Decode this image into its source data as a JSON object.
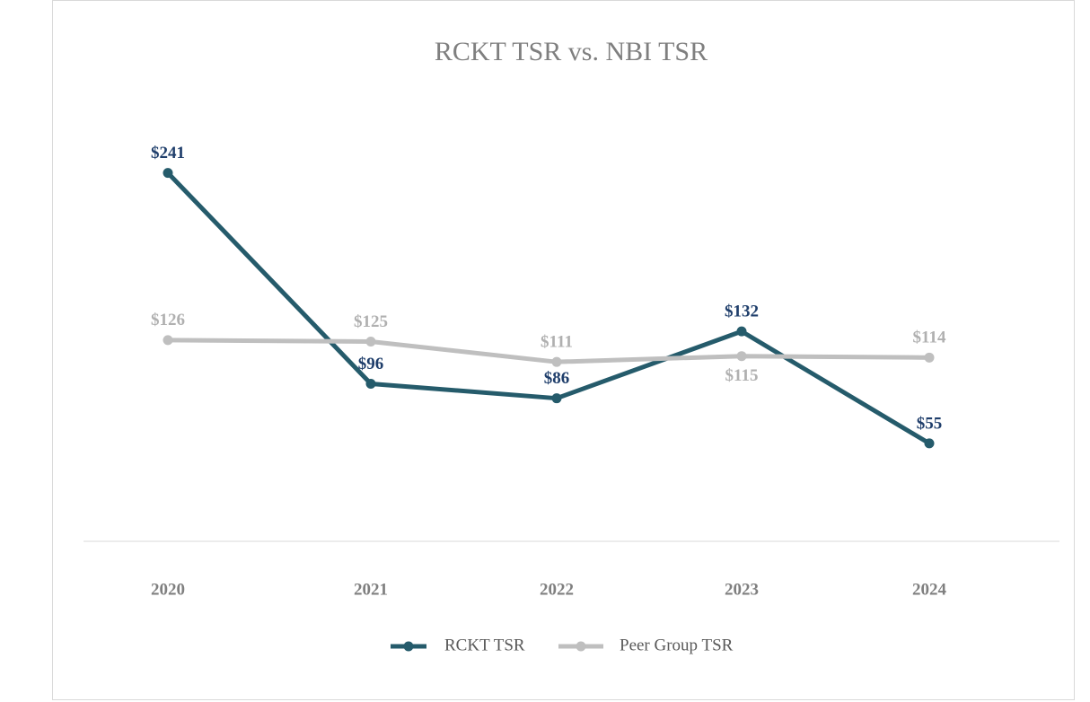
{
  "chart_data": {
    "type": "line",
    "title": "RCKT TSR vs. NBI TSR",
    "categories": [
      "2020",
      "2021",
      "2022",
      "2023",
      "2024"
    ],
    "series": [
      {
        "name": "RCKT TSR",
        "color": "#255b6b",
        "values": [
          241,
          96,
          86,
          132,
          55
        ],
        "value_labels": [
          "$241",
          "$96",
          "$86",
          "$132",
          "$55"
        ]
      },
      {
        "name": "Peer Group TSR",
        "color": "#bfbfbf",
        "values": [
          126,
          125,
          111,
          115,
          114
        ],
        "value_labels": [
          "$126",
          "$125",
          "$111",
          "$115",
          "$114"
        ]
      }
    ],
    "ylim": [
      0,
      300
    ],
    "grid": false,
    "legend": "bottom"
  }
}
